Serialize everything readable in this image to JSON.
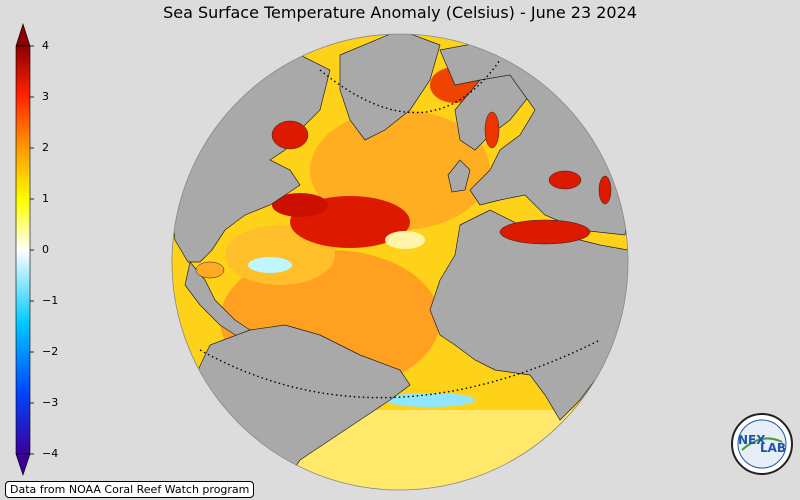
{
  "title": "Sea Surface Temperature Anomaly (Celsius) - June 23 2024",
  "colorbar": {
    "ticks": [
      "4",
      "3",
      "2",
      "1",
      "0",
      "−1",
      "−2",
      "−3",
      "−4"
    ],
    "range": [
      -4,
      4
    ],
    "colors": [
      "#3a0099",
      "#0044ff",
      "#00c8ff",
      "#ffffff",
      "#ffff00",
      "#ff9900",
      "#ff2200",
      "#8b0000"
    ]
  },
  "attribution": "Data from NOAA Coral Reef Watch program",
  "logo": {
    "icon": "nexlab-logo",
    "text_left": "NEX",
    "text_right": "LAB"
  },
  "colors": {
    "background": "#dcdcdc",
    "land": "#a9a9a9",
    "warm": "#ff9900",
    "hot": "#dd1100",
    "mild": "#ffee33"
  }
}
